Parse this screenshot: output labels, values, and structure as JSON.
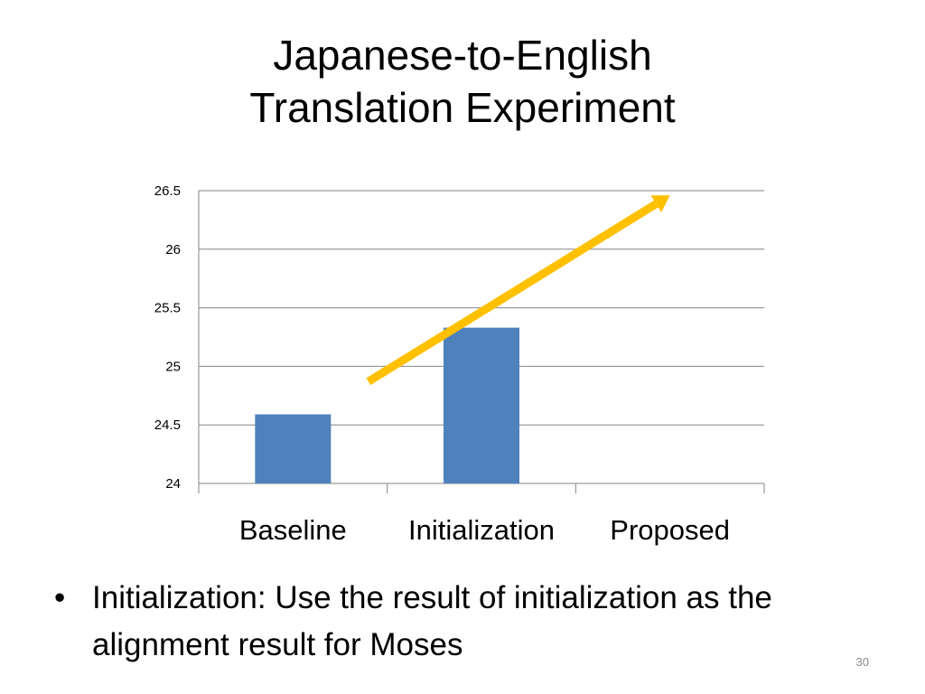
{
  "slide": {
    "title_line1": "Japanese-to-English",
    "title_line2": "Translation Experiment",
    "bullet_symbol": "•",
    "bullet_text": "Initialization: Use the result of initialization as the alignment result for Moses",
    "slide_number": "30"
  },
  "colors": {
    "bar": "#4F81BD",
    "arrow": "#FFC000",
    "grid": "#868686"
  },
  "chart_data": {
    "type": "bar",
    "categories": [
      "Baseline",
      "Initialization",
      "Proposed"
    ],
    "values": [
      24.59,
      25.33,
      null
    ],
    "ylim": [
      24,
      26.5
    ],
    "yticks": [
      "24",
      "24.5",
      "25",
      "25.5",
      "26",
      "26.5"
    ],
    "grid": true,
    "annotation": {
      "type": "trend-arrow",
      "from": [
        0.9,
        24.87
      ],
      "to": [
        2.5,
        26.46
      ]
    }
  }
}
